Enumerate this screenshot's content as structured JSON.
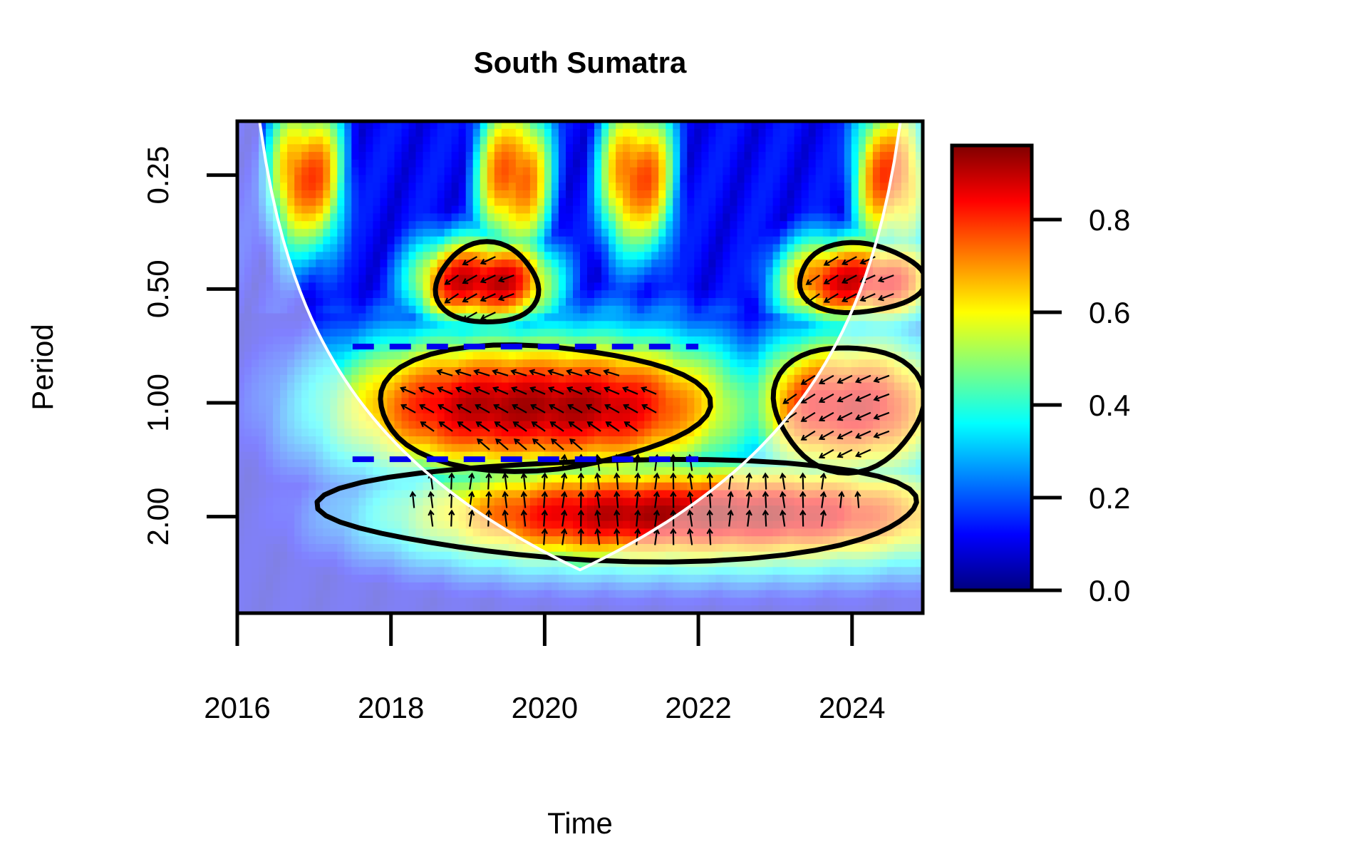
{
  "chart_data": {
    "type": "heatmap",
    "title": "South Sumatra",
    "xlabel": "Time",
    "ylabel": "Period",
    "x_ticks": [
      "2016",
      "2018",
      "2020",
      "2022",
      "2024"
    ],
    "x_tick_values": [
      2016,
      2018,
      2020,
      2022,
      2024
    ],
    "xlim": [
      2016,
      2024.92
    ],
    "y_ticks": [
      "0.25",
      "0.50",
      "1.00",
      "2.00"
    ],
    "y_tick_values": [
      0.25,
      0.5,
      1.0,
      2.0
    ],
    "y_scale": "log2",
    "ylim": [
      0.18,
      3.6
    ],
    "y_axis_inverted": true,
    "colorbar": {
      "ticks": [
        "0.0",
        "0.2",
        "0.4",
        "0.6",
        "0.8"
      ],
      "tick_values": [
        0,
        0.2,
        0.4,
        0.6,
        0.8
      ],
      "range": [
        0,
        0.96
      ],
      "palette": [
        "#00007f",
        "#0000ff",
        "#007fff",
        "#00ffff",
        "#7fff7f",
        "#ffff00",
        "#ff7f00",
        "#ff0000",
        "#7f0000"
      ]
    },
    "bands": [
      {
        "period_range": [
          0.18,
          0.35
        ],
        "level": "low-variable",
        "peaks_at": [
          2016.9,
          2019.6,
          2021.2,
          2024.5
        ]
      },
      {
        "period_range": [
          0.38,
          0.6
        ],
        "level": "high",
        "time_range": [
          2018.5,
          2019.9
        ],
        "peak": 0.85
      },
      {
        "period_range": [
          0.38,
          0.6
        ],
        "level": "high",
        "time_range": [
          2023.3,
          2024.9
        ],
        "peak": 0.82
      },
      {
        "period_range": [
          0.7,
          1.5
        ],
        "level": "high",
        "time_range": [
          2017.8,
          2022.0
        ],
        "peak": 0.9
      },
      {
        "period_range": [
          0.7,
          1.5
        ],
        "level": "high",
        "time_range": [
          2023.0,
          2024.9
        ],
        "peak": 0.85
      },
      {
        "period_range": [
          1.5,
          2.6
        ],
        "level": "high",
        "time_range": [
          2019.0,
          2024.9
        ],
        "peak": 0.9
      }
    ],
    "significance_contours": [
      {
        "time_range": [
          2018.6,
          2019.9
        ],
        "period_range": [
          0.38,
          0.62
        ]
      },
      {
        "time_range": [
          2023.3,
          2024.9
        ],
        "period_range": [
          0.38,
          0.58
        ]
      },
      {
        "time_range": [
          2017.8,
          2022.0
        ],
        "period_range": [
          0.7,
          1.5
        ]
      },
      {
        "time_range": [
          2023.0,
          2024.9
        ],
        "period_range": [
          0.7,
          1.5
        ]
      },
      {
        "time_range": [
          2017.3,
          2024.9
        ],
        "period_range": [
          1.4,
          2.6
        ]
      }
    ],
    "dashed_ridges": [
      {
        "period": 0.71,
        "time_range": [
          2017.5,
          2022.0
        ]
      },
      {
        "period": 1.41,
        "time_range": [
          2017.5,
          2022.0
        ]
      }
    ],
    "cone_of_influence": {
      "color": "#ffffff",
      "shaded_outside": true
    },
    "arrows": {
      "color": "#000000",
      "meaning": "phase"
    },
    "grid": false,
    "legend": "colorbar-right"
  }
}
